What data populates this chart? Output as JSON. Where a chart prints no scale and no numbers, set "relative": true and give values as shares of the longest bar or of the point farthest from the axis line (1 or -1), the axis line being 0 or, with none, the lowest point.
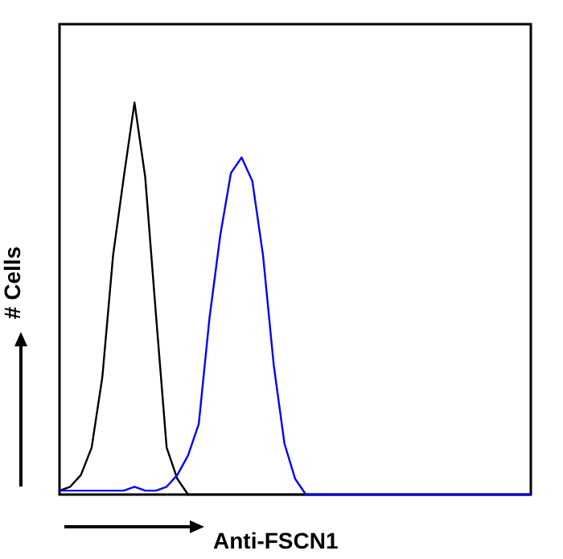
{
  "chart_data": {
    "type": "line",
    "relative": true,
    "xlabel": "Anti-FSCN1",
    "ylabel": "# Cells",
    "grid": false,
    "marker": "none",
    "line_style": "solid",
    "categories": [
      null,
      null,
      null,
      null,
      null,
      null,
      null,
      null,
      null,
      null,
      null,
      null,
      null,
      null,
      null,
      null,
      null,
      null,
      null,
      null,
      null,
      null,
      null,
      null,
      null,
      null,
      null,
      null,
      null,
      null,
      null,
      null,
      null,
      null,
      null,
      null,
      null,
      null,
      null,
      null,
      null,
      null,
      null,
      null,
      null
    ],
    "series": [
      {
        "color": "#000000",
        "values": [
          0.01,
          0.02,
          0.05,
          0.12,
          0.3,
          0.61,
          0.81,
          1,
          0.81,
          0.46,
          0.12,
          0.04,
          0,
          0,
          0,
          0,
          0,
          0,
          0,
          0,
          0,
          0,
          0,
          0,
          0,
          0,
          0,
          0,
          0,
          0,
          0,
          0,
          0,
          0,
          0,
          0,
          0,
          0,
          0,
          0,
          0,
          0,
          0,
          0,
          0
        ]
      },
      {
        "color": "#0000ff",
        "values": [
          0.01,
          0.01,
          0.01,
          0.01,
          0.01,
          0.01,
          0.01,
          0.02,
          0.01,
          0.01,
          0.02,
          0.05,
          0.1,
          0.18,
          0.45,
          0.66,
          0.82,
          0.86,
          0.8,
          0.61,
          0.33,
          0.13,
          0.04,
          0,
          0,
          0,
          0,
          0,
          0,
          0,
          0,
          0,
          0,
          0,
          0,
          0,
          0,
          0,
          0,
          0,
          0,
          0,
          0,
          0,
          0
        ]
      }
    ]
  }
}
